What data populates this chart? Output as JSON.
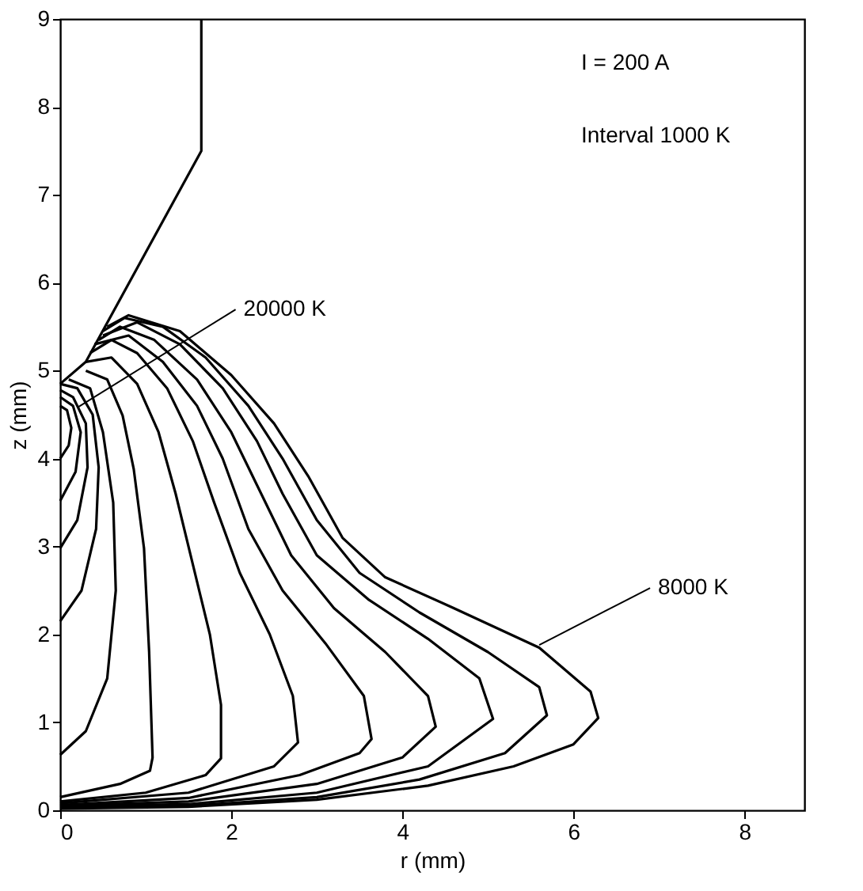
{
  "chart_data": {
    "type": "line",
    "xlabel": "r (mm)",
    "ylabel": "z (mm)",
    "xlim": [
      0,
      8.7
    ],
    "ylim": [
      0,
      9
    ],
    "xticks": [
      0,
      2,
      4,
      6,
      8
    ],
    "yticks": [
      0,
      1,
      2,
      3,
      4,
      5,
      6,
      7,
      8,
      9
    ],
    "grid": false,
    "legend": false,
    "marker": "none",
    "line_style": "solid",
    "annotations": [
      "I = 200 A",
      "Interval 1000 K",
      {
        "text": "20000 K",
        "x": 0.2,
        "y": 4.58
      },
      {
        "text": "8000 K",
        "x": 5.6,
        "y": 1.88
      }
    ],
    "series": [
      {
        "color": "#000000",
        "x": [
          0,
          0.3,
          1.65,
          1.65
        ],
        "values": [
          4.85,
          5.1,
          7.5,
          9
        ]
      },
      {
        "color": "#000000",
        "x": [
          0,
          1.5,
          3,
          4.3,
          5.3,
          6.0,
          6.29,
          6.2,
          5.6,
          4.6,
          3.8,
          3.3,
          2.9,
          2.5,
          2.0,
          1.4,
          0.8,
          0.55
        ],
        "values": [
          0.02,
          0.04,
          0.12,
          0.28,
          0.5,
          0.75,
          1.05,
          1.35,
          1.85,
          2.3,
          2.65,
          3.1,
          3.8,
          4.4,
          4.95,
          5.45,
          5.63,
          5.5
        ]
      },
      {
        "color": "#000000",
        "x": [
          0,
          1.5,
          3,
          4.2,
          5.2,
          5.69,
          5.6,
          5.0,
          4.2,
          3.5,
          3.0,
          2.6,
          2.2,
          1.7,
          1.2,
          0.75,
          0.5
        ],
        "values": [
          0.03,
          0.05,
          0.15,
          0.35,
          0.65,
          1.08,
          1.4,
          1.8,
          2.25,
          2.7,
          3.3,
          4.0,
          4.6,
          5.15,
          5.5,
          5.6,
          5.45
        ]
      },
      {
        "color": "#000000",
        "x": [
          0,
          1.5,
          3,
          4.3,
          5.06,
          4.9,
          4.3,
          3.6,
          3.0,
          2.6,
          2.3,
          1.9,
          1.4,
          0.9,
          0.5
        ],
        "values": [
          0.04,
          0.07,
          0.2,
          0.5,
          1.04,
          1.5,
          1.95,
          2.4,
          2.9,
          3.6,
          4.2,
          4.8,
          5.3,
          5.55,
          5.4
        ]
      },
      {
        "color": "#000000",
        "x": [
          0,
          1.5,
          3,
          4.0,
          4.39,
          4.3,
          3.8,
          3.2,
          2.7,
          2.35,
          2.0,
          1.6,
          1.1,
          0.7,
          0.45
        ],
        "values": [
          0.05,
          0.1,
          0.3,
          0.6,
          0.95,
          1.3,
          1.8,
          2.3,
          2.9,
          3.6,
          4.3,
          4.9,
          5.35,
          5.5,
          5.35
        ]
      },
      {
        "color": "#000000",
        "x": [
          0,
          1.5,
          2.8,
          3.5,
          3.64,
          3.55,
          3.1,
          2.6,
          2.2,
          1.9,
          1.6,
          1.2,
          0.8,
          0.4
        ],
        "values": [
          0.06,
          0.14,
          0.4,
          0.65,
          0.81,
          1.3,
          1.9,
          2.5,
          3.2,
          4.0,
          4.6,
          5.1,
          5.4,
          5.3
        ]
      },
      {
        "color": "#000000",
        "x": [
          0,
          1.5,
          2.5,
          2.78,
          2.72,
          2.45,
          2.1,
          1.8,
          1.55,
          1.25,
          0.9,
          0.6,
          0.35
        ],
        "values": [
          0.08,
          0.2,
          0.5,
          0.77,
          1.3,
          2.0,
          2.7,
          3.5,
          4.2,
          4.8,
          5.2,
          5.35,
          5.2
        ]
      },
      {
        "color": "#000000",
        "x": [
          0,
          1.0,
          1.7,
          1.88,
          1.88,
          1.75,
          1.55,
          1.35,
          1.15,
          0.9,
          0.6,
          0.3
        ],
        "values": [
          0.1,
          0.2,
          0.4,
          0.59,
          1.2,
          2.0,
          2.8,
          3.6,
          4.3,
          4.85,
          5.15,
          5.1
        ]
      },
      {
        "color": "#000000",
        "x": [
          0,
          0.7,
          1.05,
          1.08,
          1.04,
          0.98,
          0.86,
          0.73,
          0.55,
          0.3
        ],
        "values": [
          0.15,
          0.3,
          0.45,
          0.6,
          1.8,
          2.98,
          3.88,
          4.49,
          4.9,
          5.0
        ]
      },
      {
        "color": "#000000",
        "x": [
          0,
          0.3,
          0.55,
          0.65,
          0.62,
          0.5,
          0.35,
          0.1
        ],
        "values": [
          0.63,
          0.9,
          1.5,
          2.5,
          3.5,
          4.3,
          4.8,
          4.9
        ]
      },
      {
        "color": "#000000",
        "x": [
          0,
          0.25,
          0.42,
          0.45,
          0.38,
          0.2,
          0
        ],
        "values": [
          2.15,
          2.5,
          3.2,
          3.9,
          4.5,
          4.8,
          4.85
        ]
      },
      {
        "color": "#000000",
        "x": [
          0,
          0.2,
          0.32,
          0.3,
          0.15,
          0
        ],
        "values": [
          2.98,
          3.3,
          3.9,
          4.4,
          4.7,
          4.78
        ]
      },
      {
        "color": "#000000",
        "x": [
          0,
          0.18,
          0.24,
          0.15,
          0
        ],
        "values": [
          3.52,
          3.85,
          4.3,
          4.6,
          4.7
        ]
      },
      {
        "color": "#000000",
        "x": [
          0,
          0.1,
          0.13,
          0.08,
          0
        ],
        "values": [
          4.0,
          4.15,
          4.35,
          4.55,
          4.6
        ]
      }
    ]
  }
}
